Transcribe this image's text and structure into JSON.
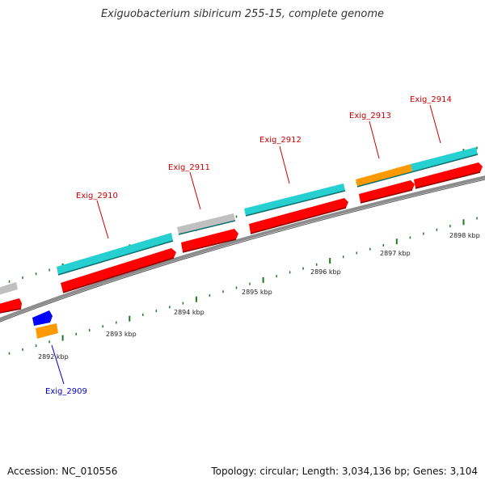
{
  "title": "Exiguobacterium sibiricum 255-15, complete genome",
  "accession": "Accession: NC_010556",
  "summary": "Topology: circular; Length: 3,034,136 bp; Genes: 3,104",
  "colors": {
    "backbone": "#8c8c8c",
    "tick": "#1f7a1f",
    "label_forward": "#cc0000",
    "label_reverse": "#0000cc",
    "cds": "#ff0000",
    "gene_cyan": "#26d0d0",
    "gene_gray": "#c0c0c0",
    "gene_orange": "#ff9900",
    "gene_blue": "#0000ff"
  },
  "scale_labels": [
    "2892 kbp",
    "2893 kbp",
    "2894 kbp",
    "2895 kbp",
    "2896 kbp",
    "2897 kbp",
    "2898 kbp"
  ],
  "genes": [
    {
      "label": "Exig_2909",
      "strand": "reverse"
    },
    {
      "label": "Exig_2910",
      "strand": "forward"
    },
    {
      "label": "Exig_2911",
      "strand": "forward"
    },
    {
      "label": "Exig_2912",
      "strand": "forward"
    },
    {
      "label": "Exig_2913",
      "strand": "forward"
    },
    {
      "label": "Exig_2914",
      "strand": "forward"
    }
  ]
}
